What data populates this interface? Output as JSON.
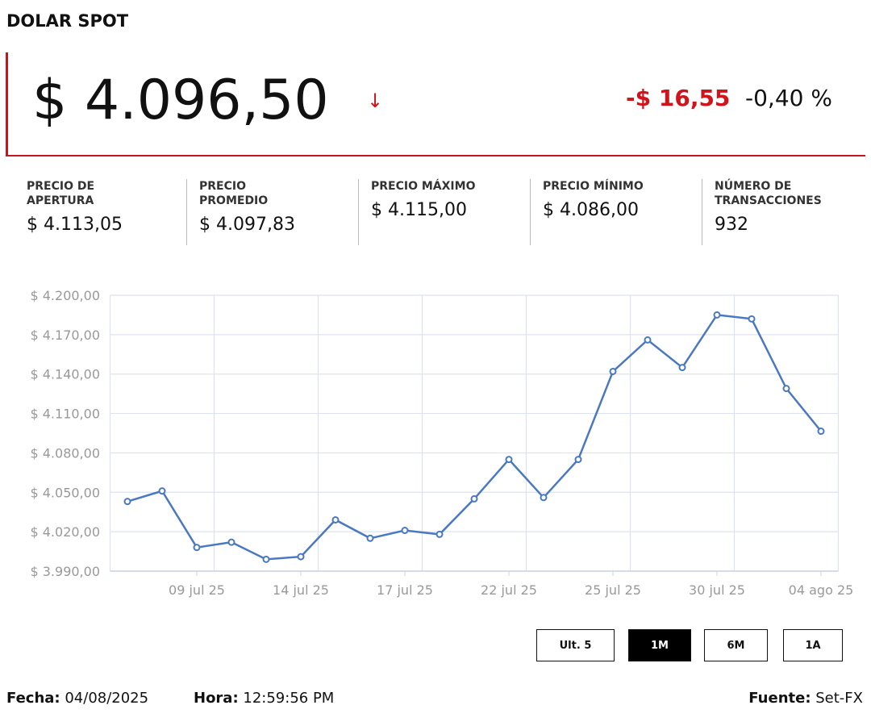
{
  "header": {
    "title": "DOLAR SPOT",
    "price": "$ 4.096,50",
    "arrow": "↓",
    "change": "-$ 16,55",
    "change_pct": "-0,40 %"
  },
  "stats": [
    {
      "label": [
        "PRECIO DE",
        "APERTURA"
      ],
      "value": "$ 4.113,05"
    },
    {
      "label": [
        "PRECIO",
        "PROMEDIO"
      ],
      "value": "$ 4.097,83"
    },
    {
      "label": [
        "PRECIO MÁXIMO"
      ],
      "value": "$ 4.115,00"
    },
    {
      "label": [
        "PRECIO MÍNIMO"
      ],
      "value": "$ 4.086,00"
    },
    {
      "label": [
        "NÚMERO DE",
        "TRANSACCIONES"
      ],
      "value": "932"
    }
  ],
  "chart_data": {
    "type": "line",
    "categories": [
      null,
      null,
      "09 jul 25",
      null,
      null,
      "14 jul 25",
      null,
      null,
      "17 jul 25",
      null,
      null,
      "22 jul 25",
      null,
      null,
      "25 jul 25",
      null,
      null,
      "30 jul 25",
      null,
      null,
      "04 ago 25"
    ],
    "series": [
      {
        "color": "#4a78c2",
        "values": [
          4043,
          4051,
          4008,
          4012,
          3999,
          4001,
          4029,
          4015,
          4021,
          4018,
          4045,
          4075,
          4046,
          4075,
          4142,
          4166,
          4145,
          4185,
          4182,
          4129,
          4096.5
        ]
      }
    ],
    "ylim": [
      3990,
      4200
    ],
    "yticks": [
      {
        "value": 3990,
        "label": "$ 3.990,00"
      },
      {
        "value": 4020,
        "label": "$ 4.020,00"
      },
      {
        "value": 4050,
        "label": "$ 4.050,00"
      },
      {
        "value": 4080,
        "label": "$ 4.080,00"
      },
      {
        "value": 4110,
        "label": "$ 4.110,00"
      },
      {
        "value": 4140,
        "label": "$ 4.140,00"
      },
      {
        "value": 4170,
        "label": "$ 4.170,00"
      },
      {
        "value": 4200,
        "label": "$ 4.200,00"
      }
    ],
    "grid": true
  },
  "buttons": [
    {
      "label": "Ult. 5",
      "active": false
    },
    {
      "label": "1M",
      "active": true
    },
    {
      "label": "6M",
      "active": false
    },
    {
      "label": "1A",
      "active": false
    }
  ],
  "footer": {
    "date_label": "Fecha:",
    "date": "04/08/2025",
    "time_label": "Hora:",
    "time": "12:59:56 PM",
    "source_label": "Fuente:",
    "source": "Set-FX"
  }
}
